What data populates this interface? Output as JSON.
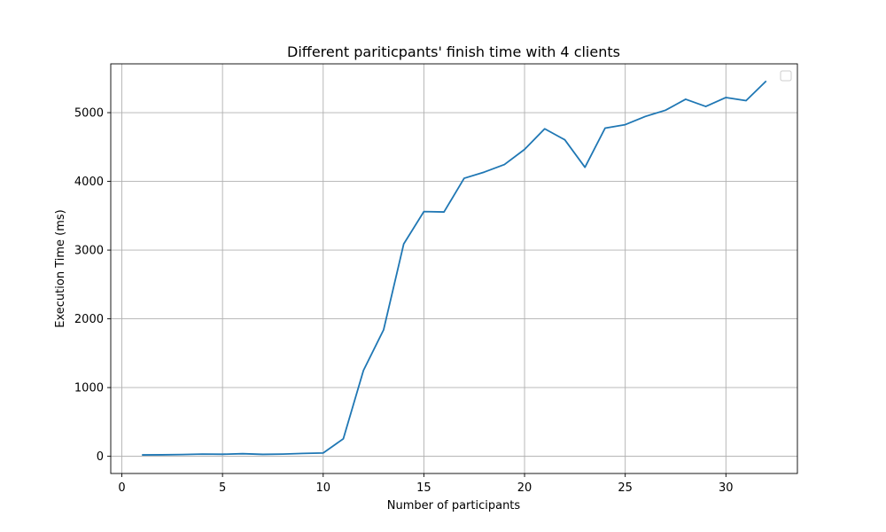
{
  "chart_data": {
    "type": "line",
    "title": "Different pariticpants' finish time with 4 clients",
    "xlabel": "Number of participants",
    "ylabel": "Execution Time (ms)",
    "xlim": [
      -0.55,
      33.55
    ],
    "ylim": [
      -250,
      5710
    ],
    "xticks": [
      0,
      5,
      10,
      15,
      20,
      25,
      30
    ],
    "yticks": [
      0,
      1000,
      2000,
      3000,
      4000,
      5000
    ],
    "grid": true,
    "legend": {
      "placement": "top-right",
      "entries": []
    },
    "line_color": "#1f77b4",
    "series": [
      {
        "x": [
          1,
          2,
          3,
          4,
          5,
          6,
          7,
          8,
          9,
          10,
          11,
          12,
          13,
          14,
          15,
          16,
          17,
          18,
          19,
          20,
          21,
          22,
          23,
          24,
          25,
          26,
          27,
          28,
          29,
          30,
          31,
          32
        ],
        "values": [
          20,
          22,
          26,
          32,
          30,
          38,
          28,
          32,
          42,
          48,
          255,
          1250,
          1840,
          3090,
          3560,
          3555,
          4045,
          4135,
          4245,
          4465,
          4765,
          4605,
          4205,
          4775,
          4825,
          4945,
          5035,
          5195,
          5090,
          5220,
          5175,
          5460
        ]
      }
    ]
  }
}
